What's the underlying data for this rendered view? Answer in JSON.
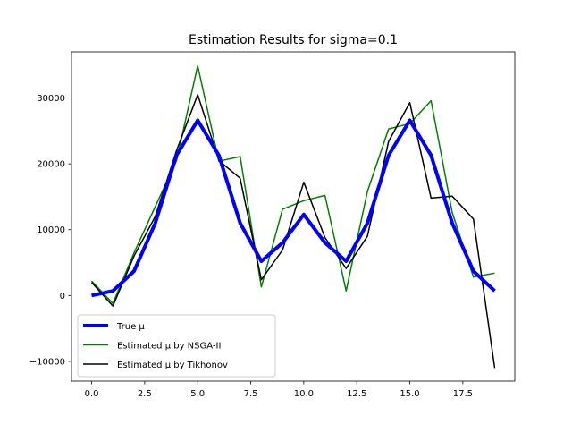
{
  "chart_data": {
    "type": "line",
    "title": "Estimation Results for sigma=0.1",
    "xlabel": "",
    "ylabel": "",
    "xlim": [
      -0.95,
      19.95
    ],
    "ylim": [
      -13000,
      37000
    ],
    "xticks": [
      0.0,
      2.5,
      5.0,
      7.5,
      10.0,
      12.5,
      15.0,
      17.5
    ],
    "xtick_labels": [
      "0.0",
      "2.5",
      "5.0",
      "7.5",
      "10.0",
      "12.5",
      "15.0",
      "17.5"
    ],
    "yticks": [
      -10000,
      0,
      10000,
      20000,
      30000
    ],
    "ytick_labels": [
      "−10000",
      "0",
      "10000",
      "20000",
      "30000"
    ],
    "grid": false,
    "legend_position": "lower-left",
    "x": [
      0,
      1,
      2,
      3,
      4,
      5,
      6,
      7,
      8,
      9,
      10,
      11,
      12,
      13,
      14,
      15,
      16,
      17,
      18,
      19
    ],
    "series": [
      {
        "name": "True μ",
        "color": "#0000ff",
        "values": [
          0,
          700,
          3700,
          11000,
          21300,
          26600,
          21300,
          11000,
          5200,
          8000,
          12300,
          8000,
          5200,
          11000,
          21300,
          26600,
          21300,
          11000,
          3700,
          700
        ]
      },
      {
        "name": "Estimated μ by NSGA-II",
        "color": "#008000",
        "values": [
          2200,
          -1200,
          6500,
          13500,
          20500,
          34900,
          20400,
          21100,
          1300,
          13100,
          14400,
          15200,
          700,
          15800,
          25300,
          26100,
          29600,
          12600,
          2800,
          3400
        ]
      },
      {
        "name": "Estimated μ by Tikhonov",
        "color": "#000000",
        "values": [
          2000,
          -1600,
          6000,
          12000,
          22000,
          30500,
          20500,
          17800,
          2400,
          6900,
          17200,
          8800,
          4100,
          9000,
          23400,
          29300,
          14800,
          15100,
          11600,
          -11000
        ]
      }
    ]
  }
}
